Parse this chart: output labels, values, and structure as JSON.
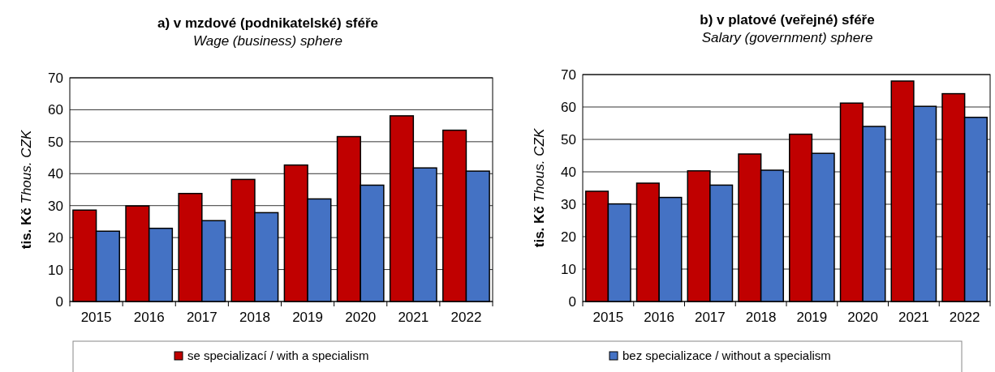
{
  "chart_data": [
    {
      "type": "bar",
      "title": "a) v mzdové (podnikatelské) sféře",
      "subtitle": "Wage (business) sphere",
      "ylabel": "tis. Kč\nThous. CZK",
      "categories": [
        "2015",
        "2016",
        "2017",
        "2018",
        "2019",
        "2020",
        "2021",
        "2022"
      ],
      "series": [
        {
          "name": "se specializací / with a specialism",
          "color": "#c00000",
          "values": [
            28.6,
            29.9,
            33.8,
            38.2,
            42.7,
            51.6,
            58.1,
            53.6
          ]
        },
        {
          "name": "bez specializace / without a specialism",
          "color": "#4472c4",
          "values": [
            22.0,
            22.9,
            25.3,
            27.8,
            32.1,
            36.4,
            41.8,
            40.8
          ]
        }
      ],
      "ylim": [
        0,
        70
      ],
      "yticks": [
        0,
        10,
        20,
        30,
        40,
        50,
        60,
        70
      ],
      "grid": "y",
      "legend": "bottom"
    },
    {
      "type": "bar",
      "title": "b) v platové (veřejné) sféře",
      "subtitle": "Salary (government) sphere",
      "ylabel": "tis. Kč\nThous. CZK",
      "categories": [
        "2015",
        "2016",
        "2017",
        "2018",
        "2019",
        "2020",
        "2021",
        "2022"
      ],
      "series": [
        {
          "color": "#c00000",
          "values": [
            34.0,
            36.5,
            40.3,
            45.5,
            51.6,
            61.2,
            68.0,
            64.1
          ]
        },
        {
          "color": "#4472c4",
          "values": [
            30.1,
            32.1,
            35.9,
            40.5,
            45.7,
            54.0,
            60.2,
            56.8
          ]
        }
      ],
      "ylim": [
        0,
        70
      ],
      "yticks": [
        0,
        10,
        20,
        30,
        40,
        50,
        60,
        70
      ],
      "grid": "y"
    }
  ]
}
